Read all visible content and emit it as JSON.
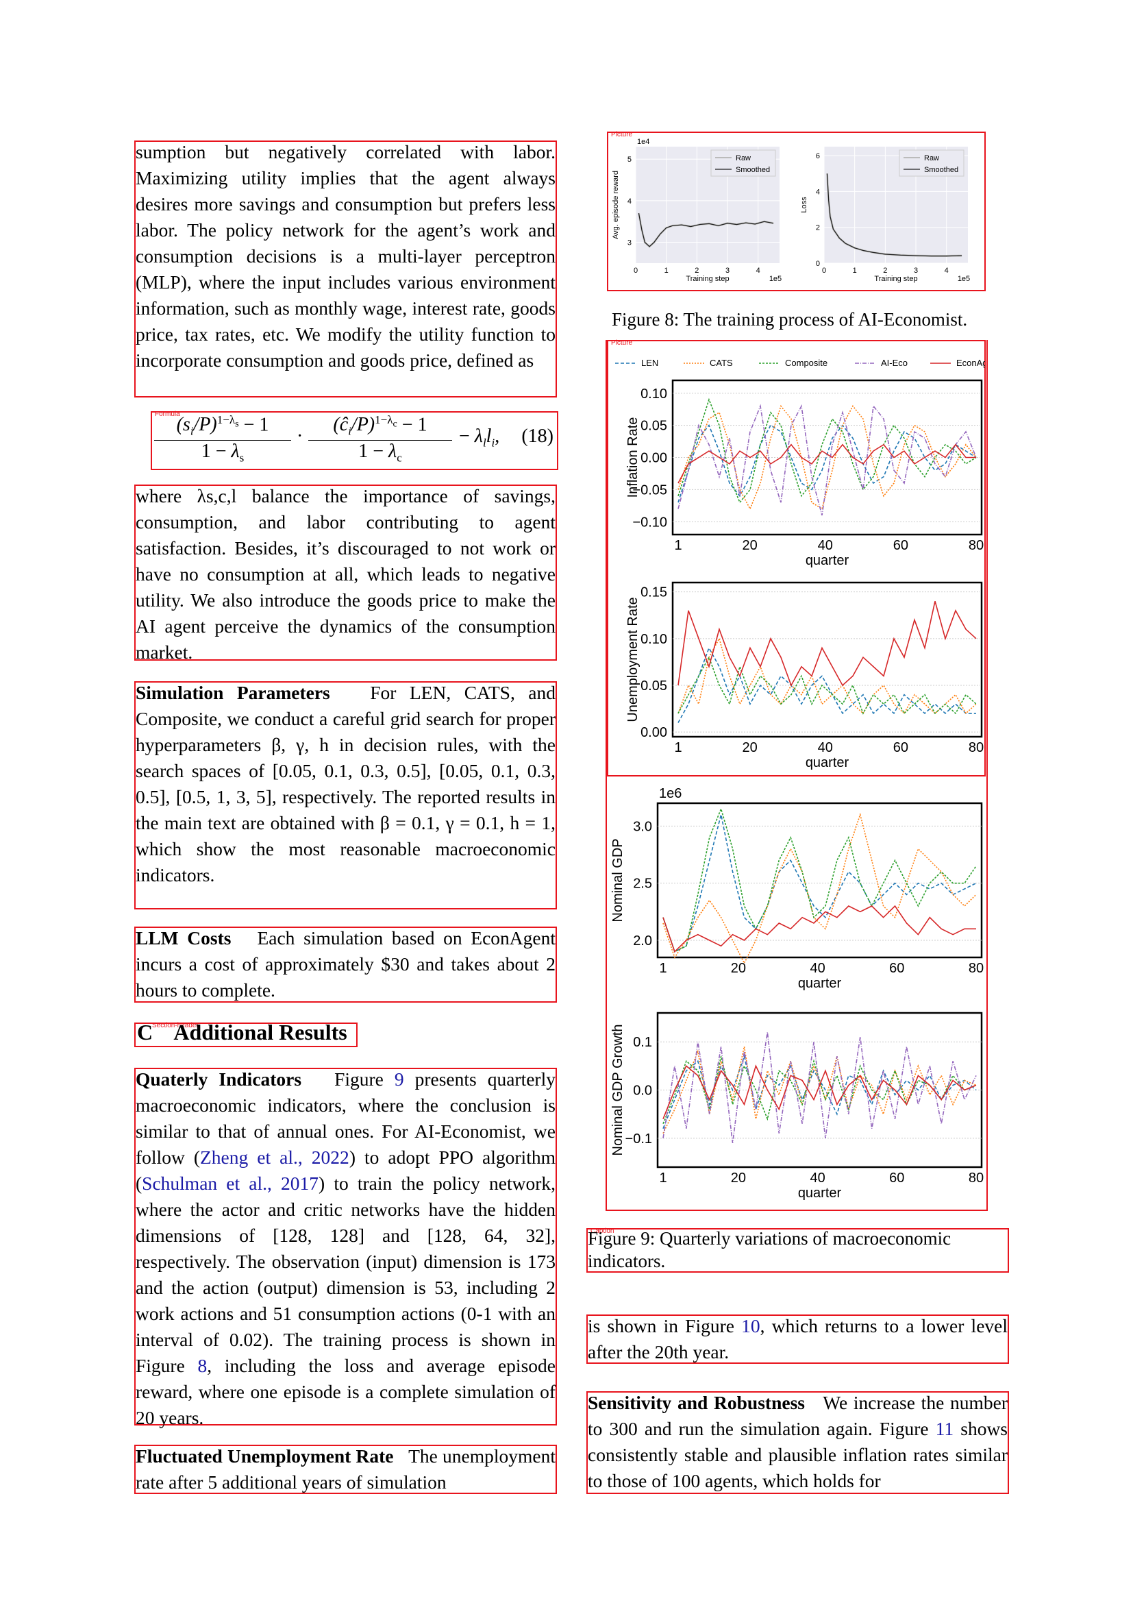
{
  "labels": {
    "picture": "Picture",
    "formula": "Formula",
    "section_header": "Section-header",
    "caption": "Caption"
  },
  "left_column": {
    "p1": "sumption but negatively correlated with labor. Maximizing utility implies that the agent always desires more savings and consumption but prefers less labor. The policy network for the agent’s work and consumption decisions is a multi-layer perceptron (MLP), where the input includes various environment information, such as monthly wage, interest rate, goods price, tax rates, etc. We modify the utility function to incorporate consumption and goods price, defined as",
    "formula_number": "(18)",
    "p2": "where λs,c,l balance the importance of savings, consumption, and labor contributing to agent satisfaction. Besides, it’s discouraged to not work or have no consumption at all, which leads to negative utility. We also introduce the goods price to make the AI agent perceive the dynamics of the consumption market.",
    "p3_title": "Simulation Parameters",
    "p3": "For LEN, CATS, and Composite, we conduct a careful grid search for proper hyperparameters β, γ, h in decision rules, with the search spaces of [0.05, 0.1, 0.3, 0.5], [0.05, 0.1, 0.3, 0.5], [0.5, 1, 3, 5], respectively. The reported results in the main text are obtained with β = 0.1, γ = 0.1, h = 1, which show the most reasonable macroeconomic indicators.",
    "p4_title": "LLM Costs",
    "p4": "Each simulation based on EconAgent incurs a cost of approximately $30 and takes about 2 hours to complete.",
    "section": "C    Additional Results",
    "p5_title": "Quaterly Indicators",
    "p5_a": "Figure ",
    "p5_ref1": "9",
    "p5_b": " presents quarterly macroeconomic indicators, where the conclusion is similar to that of annual ones. For AI-Economist, we follow (",
    "p5_ref2": "Zheng et al., 2022",
    "p5_c": ") to adopt PPO algorithm (",
    "p5_ref3": "Schulman et al., 2017",
    "p5_d": ") to train the policy network, where the actor and critic networks have the hidden dimensions of [128, 128] and [128, 64, 32], respectively. The observation (input) dimension is 173 and the action (output) dimension is 53, including 2 work actions and 51 consumption actions (0-1 with an interval of 0.02). The training process is shown in Figure ",
    "p5_ref4": "8",
    "p5_e": ", including the loss and average episode reward, where one episode is a complete simulation of 20 years.",
    "p6_title": "Fluctuated Unemployment Rate",
    "p6": "The unemployment rate after 5 additional years of simulation"
  },
  "right_column": {
    "fig8_caption": "Figure 8: The training process of AI-Economist.",
    "fig9_caption": "Figure 9: Quarterly variations of macroeconomic indicators.",
    "p7_a": "is shown in Figure ",
    "p7_ref": "10",
    "p7_b": ", which returns to a lower level after the 20th year.",
    "p8_title": "Sensitivity and Robustness",
    "p8_a": "We increase the number to 300 and run the simulation again. Figure ",
    "p8_ref": "11",
    "p8_b": " shows consistently stable and plausible inflation rates similar to those of 100 agents, which holds for"
  },
  "chart_data": [
    {
      "type": "line",
      "panel": "fig8-left",
      "ylabel": "Avg. episode reward",
      "xlabel": "Training step",
      "x_offset_label": "1e5",
      "y_offset_label": "1e4",
      "xticks": [
        "0",
        "1",
        "2",
        "3",
        "4"
      ],
      "yticks": [
        "3",
        "4",
        "5"
      ],
      "xlim": [
        0,
        4.7
      ],
      "ylim": [
        2.5,
        5.3
      ],
      "legend": [
        "Raw",
        "Smoothed"
      ],
      "series": [
        {
          "name": "Smoothed",
          "x": [
            0.1,
            0.2,
            0.3,
            0.45,
            0.6,
            0.8,
            1.0,
            1.2,
            1.5,
            1.8,
            2.1,
            2.4,
            2.7,
            3.0,
            3.3,
            3.6,
            3.9,
            4.2,
            4.5
          ],
          "values": [
            3.7,
            3.3,
            3.0,
            2.9,
            3.0,
            3.2,
            3.35,
            3.4,
            3.42,
            3.38,
            3.43,
            3.45,
            3.4,
            3.46,
            3.43,
            3.47,
            3.44,
            3.5,
            3.46
          ]
        }
      ]
    },
    {
      "type": "line",
      "panel": "fig8-right",
      "ylabel": "Loss",
      "xlabel": "Training step",
      "x_offset_label": "1e5",
      "xticks": [
        "0",
        "1",
        "2",
        "3",
        "4"
      ],
      "yticks": [
        "0",
        "2",
        "4",
        "6"
      ],
      "xlim": [
        0,
        4.7
      ],
      "ylim": [
        0,
        6.5
      ],
      "legend": [
        "Raw",
        "Smoothed"
      ],
      "series": [
        {
          "name": "Smoothed",
          "x": [
            0.1,
            0.15,
            0.2,
            0.3,
            0.5,
            0.7,
            1.0,
            1.3,
            1.6,
            2.0,
            2.5,
            3.0,
            3.5,
            4.0,
            4.5
          ],
          "values": [
            5.0,
            3.5,
            2.6,
            1.9,
            1.4,
            1.1,
            0.85,
            0.7,
            0.6,
            0.5,
            0.45,
            0.42,
            0.4,
            0.4,
            0.42
          ]
        }
      ]
    },
    {
      "type": "line",
      "panel": "inflation",
      "ylabel": "Inflation Rate",
      "xlabel": "quarter",
      "xticks": [
        1,
        20,
        40,
        60,
        80
      ],
      "ylim": [
        -0.12,
        0.12
      ],
      "yticks": [
        "0.10",
        "0.05",
        "0.00",
        "−0.05",
        "−0.10"
      ],
      "legend": [
        "LEN",
        "CATS",
        "Composite",
        "AI-Eco",
        "EconAgent"
      ],
      "series": [
        {
          "name": "LEN",
          "values": [
            -0.07,
            -0.02,
            0.03,
            0.05,
            0.01,
            -0.04,
            -0.06,
            -0.03,
            0.02,
            0.05,
            0.04,
            0.0,
            -0.04,
            -0.05,
            -0.02,
            0.03,
            0.05,
            0.03,
            -0.01,
            -0.04,
            -0.03,
            0.01,
            0.04,
            0.03,
            0.0,
            -0.02,
            -0.01,
            0.02,
            0.01,
            0.0
          ]
        },
        {
          "name": "CATS",
          "values": [
            -0.05,
            0.0,
            0.02,
            0.06,
            0.07,
            0.02,
            -0.05,
            -0.08,
            -0.04,
            0.03,
            0.08,
            0.06,
            0.0,
            -0.07,
            -0.08,
            -0.02,
            0.05,
            0.08,
            0.06,
            -0.01,
            -0.06,
            -0.04,
            0.02,
            0.05,
            0.04,
            0.0,
            -0.03,
            -0.01,
            0.02,
            0.0
          ]
        },
        {
          "name": "Composite",
          "values": [
            -0.06,
            -0.01,
            0.04,
            0.09,
            0.05,
            -0.03,
            -0.07,
            -0.05,
            0.02,
            0.07,
            0.05,
            -0.01,
            -0.06,
            -0.04,
            0.02,
            0.06,
            0.04,
            -0.01,
            -0.05,
            -0.03,
            0.02,
            0.05,
            0.03,
            -0.01,
            -0.03,
            0.0,
            0.02,
            0.01,
            -0.01,
            0.0
          ]
        },
        {
          "name": "AI-Eco",
          "values": [
            -0.08,
            -0.02,
            0.05,
            0.02,
            -0.03,
            0.03,
            -0.06,
            0.04,
            0.08,
            -0.02,
            -0.07,
            0.05,
            0.08,
            -0.03,
            -0.09,
            0.02,
            0.07,
            0.01,
            -0.05,
            0.08,
            0.06,
            -0.02,
            -0.04,
            0.04,
            0.03,
            -0.01,
            -0.03,
            0.02,
            0.04,
            0.0
          ]
        },
        {
          "name": "EconAgent",
          "values": [
            -0.04,
            -0.01,
            0.0,
            0.01,
            0.0,
            -0.01,
            0.01,
            0.0,
            0.01,
            -0.01,
            0.0,
            0.02,
            0.0,
            -0.01,
            0.01,
            0.0,
            0.02,
            0.0,
            -0.01,
            0.01,
            0.02,
            0.0,
            0.01,
            -0.01,
            0.0,
            0.01,
            0.0,
            0.02,
            0.0,
            0.0
          ]
        }
      ]
    },
    {
      "type": "line",
      "panel": "unemployment",
      "ylabel": "Unemployment Rate",
      "xlabel": "quarter",
      "xticks": [
        1,
        20,
        40,
        60,
        80
      ],
      "ylim": [
        -0.005,
        0.16
      ],
      "yticks": [
        "0.15",
        "0.10",
        "0.05",
        "0.00"
      ],
      "legend": [
        "LEN",
        "CATS",
        "Composite",
        "AI-Eco",
        "EconAgent"
      ],
      "series": [
        {
          "name": "LEN",
          "values": [
            0.01,
            0.03,
            0.06,
            0.09,
            0.07,
            0.04,
            0.06,
            0.03,
            0.05,
            0.04,
            0.06,
            0.05,
            0.03,
            0.05,
            0.06,
            0.04,
            0.02,
            0.03,
            0.04,
            0.02,
            0.03,
            0.02,
            0.04,
            0.03,
            0.02,
            0.03,
            0.02,
            0.03,
            0.02,
            0.02
          ]
        },
        {
          "name": "CATS",
          "values": [
            0.02,
            0.05,
            0.03,
            0.08,
            0.1,
            0.06,
            0.03,
            0.05,
            0.07,
            0.04,
            0.03,
            0.05,
            0.04,
            0.06,
            0.03,
            0.04,
            0.05,
            0.03,
            0.02,
            0.04,
            0.05,
            0.03,
            0.02,
            0.04,
            0.03,
            0.02,
            0.03,
            0.04,
            0.02,
            0.03
          ]
        },
        {
          "name": "Composite",
          "values": [
            0.02,
            0.04,
            0.06,
            0.08,
            0.05,
            0.03,
            0.07,
            0.04,
            0.06,
            0.05,
            0.03,
            0.04,
            0.06,
            0.03,
            0.05,
            0.04,
            0.03,
            0.05,
            0.02,
            0.04,
            0.03,
            0.04,
            0.02,
            0.03,
            0.04,
            0.02,
            0.03,
            0.02,
            0.04,
            0.03
          ]
        },
        {
          "name": "EconAgent",
          "values": [
            0.05,
            0.13,
            0.1,
            0.07,
            0.11,
            0.08,
            0.06,
            0.09,
            0.07,
            0.1,
            0.08,
            0.05,
            0.07,
            0.06,
            0.09,
            0.07,
            0.05,
            0.06,
            0.08,
            0.07,
            0.06,
            0.1,
            0.08,
            0.12,
            0.09,
            0.14,
            0.1,
            0.13,
            0.11,
            0.1
          ]
        }
      ]
    },
    {
      "type": "line",
      "panel": "nominal-gdp",
      "ylabel": "Nominal GDP",
      "xlabel": "quarter",
      "y_offset_label": "1e6",
      "xticks": [
        1,
        20,
        40,
        60,
        80
      ],
      "ylim": [
        1.85,
        3.2
      ],
      "yticks": [
        "3.0",
        "2.5",
        "2.0"
      ],
      "legend": [
        "LEN",
        "CATS",
        "Composite",
        "AI-Eco",
        "EconAgent"
      ],
      "series": [
        {
          "name": "LEN",
          "values": [
            2.2,
            1.9,
            1.95,
            2.3,
            2.7,
            3.1,
            2.6,
            2.2,
            2.1,
            2.3,
            2.6,
            2.7,
            2.5,
            2.3,
            2.2,
            2.4,
            2.6,
            2.5,
            2.3,
            2.4,
            2.5,
            2.4,
            2.5,
            2.45,
            2.5,
            2.4,
            2.45,
            2.5
          ]
        },
        {
          "name": "CATS",
          "values": [
            2.15,
            1.85,
            2.0,
            2.2,
            2.35,
            2.2,
            2.0,
            1.8,
            2.0,
            2.3,
            2.6,
            2.8,
            2.6,
            2.2,
            2.1,
            2.4,
            2.8,
            3.1,
            2.7,
            2.3,
            2.2,
            2.5,
            2.8,
            2.7,
            2.6,
            2.4,
            2.3,
            2.4
          ]
        },
        {
          "name": "Composite",
          "values": [
            2.2,
            1.9,
            1.95,
            2.4,
            2.9,
            3.15,
            2.8,
            2.3,
            2.1,
            2.3,
            2.7,
            2.9,
            2.6,
            2.2,
            2.3,
            2.7,
            2.9,
            2.5,
            2.3,
            2.5,
            2.7,
            2.5,
            2.3,
            2.5,
            2.6,
            2.5,
            2.5,
            2.65
          ]
        },
        {
          "name": "EconAgent",
          "values": [
            2.2,
            1.9,
            2.0,
            2.05,
            2.0,
            1.95,
            2.05,
            2.0,
            2.1,
            2.05,
            2.15,
            2.1,
            2.2,
            2.15,
            2.25,
            2.2,
            2.3,
            2.25,
            2.3,
            2.2,
            2.3,
            2.15,
            2.05,
            2.2,
            2.1,
            2.05,
            2.1,
            2.1
          ]
        }
      ]
    },
    {
      "type": "line",
      "panel": "nominal-gdp-growth",
      "ylabel": "Nominal GDP Growth",
      "xlabel": "quarter",
      "xticks": [
        1,
        20,
        40,
        60,
        80
      ],
      "ylim": [
        -0.16,
        0.16
      ],
      "yticks": [
        "0.1",
        "0.0",
        "−0.1"
      ],
      "legend": [
        "LEN",
        "CATS",
        "Composite",
        "AI-Eco",
        "EconAgent"
      ],
      "series": [
        {
          "name": "LEN",
          "values": [
            -0.08,
            -0.02,
            0.04,
            0.06,
            -0.03,
            0.05,
            0.0,
            0.07,
            -0.04,
            0.03,
            0.01,
            0.05,
            -0.02,
            0.04,
            0.0,
            -0.05,
            0.03,
            0.02,
            -0.03,
            0.04,
            -0.01,
            0.02,
            0.0,
            0.03,
            -0.02,
            0.01,
            0.02,
            0.0
          ]
        },
        {
          "name": "CATS",
          "values": [
            -0.09,
            -0.04,
            0.02,
            0.08,
            -0.05,
            0.06,
            -0.02,
            0.09,
            -0.06,
            0.04,
            -0.01,
            0.06,
            -0.03,
            0.05,
            -0.02,
            0.07,
            -0.04,
            0.03,
            0.01,
            -0.05,
            0.04,
            -0.02,
            0.05,
            -0.01,
            0.03,
            -0.03,
            0.02,
            0.01
          ]
        },
        {
          "name": "Composite",
          "values": [
            -0.07,
            -0.01,
            0.06,
            0.04,
            -0.04,
            0.07,
            -0.03,
            0.05,
            0.0,
            -0.06,
            0.04,
            0.02,
            -0.03,
            0.06,
            -0.02,
            0.03,
            -0.04,
            0.05,
            0.0,
            -0.02,
            0.04,
            -0.03,
            0.02,
            0.01,
            -0.02,
            0.03,
            0.0,
            0.01
          ]
        },
        {
          "name": "AI-Eco",
          "values": [
            -0.1,
            0.05,
            -0.08,
            0.1,
            -0.05,
            0.09,
            -0.11,
            0.08,
            -0.04,
            0.12,
            -0.09,
            0.06,
            -0.07,
            0.1,
            -0.1,
            0.07,
            -0.05,
            0.11,
            -0.08,
            0.04,
            -0.06,
            0.09,
            -0.03,
            0.05,
            -0.07,
            0.06,
            -0.02,
            0.03
          ]
        },
        {
          "name": "EconAgent",
          "values": [
            -0.06,
            0.0,
            0.05,
            0.03,
            -0.02,
            0.04,
            0.01,
            -0.03,
            0.05,
            0.0,
            -0.04,
            0.03,
            0.02,
            -0.02,
            0.04,
            -0.03,
            0.01,
            0.03,
            -0.02,
            0.02,
            0.0,
            -0.03,
            0.03,
            0.01,
            -0.02,
            0.02,
            0.0,
            0.01
          ]
        }
      ]
    }
  ]
}
